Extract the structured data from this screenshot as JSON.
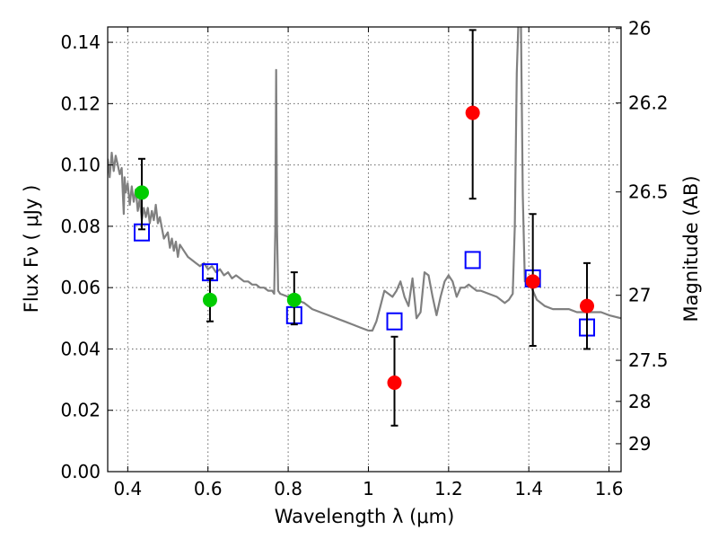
{
  "chart_data": {
    "type": "scatter",
    "xlabel": "Wavelength  λ (μm)",
    "ylabel": "Flux  Fν  ( μJy )",
    "y2label": "Magnitude (AB)",
    "xlim": [
      0.35,
      1.63
    ],
    "ylim": [
      0.0,
      0.145
    ],
    "grid": true,
    "x_ticks": [
      0.4,
      0.6,
      0.8,
      1.0,
      1.2,
      1.4,
      1.6
    ],
    "x_tick_labels": [
      "0.4",
      "0.6",
      "0.8",
      "1",
      "1.2",
      "1.4",
      "1.6"
    ],
    "y_ticks": [
      0.0,
      0.02,
      0.04,
      0.06,
      0.08,
      0.1,
      0.12,
      0.14
    ],
    "y_tick_labels": [
      "0.00",
      "0.02",
      "0.04",
      "0.06",
      "0.08",
      "0.10",
      "0.12",
      "0.14"
    ],
    "y2_ticks": [
      {
        "label": "26",
        "flux": 0.1445
      },
      {
        "label": "26.2",
        "flux": 0.1202
      },
      {
        "label": "26.5",
        "flux": 0.0912
      },
      {
        "label": "27",
        "flux": 0.0575
      },
      {
        "label": "27.5",
        "flux": 0.0363
      },
      {
        "label": "28",
        "flux": 0.0229
      },
      {
        "label": "29",
        "flux": 0.0091
      }
    ],
    "series": [
      {
        "kind": "line",
        "color": "#808080",
        "points": [
          [
            0.35,
            0.102
          ],
          [
            0.355,
            0.096
          ],
          [
            0.36,
            0.104
          ],
          [
            0.365,
            0.098
          ],
          [
            0.37,
            0.103
          ],
          [
            0.375,
            0.1
          ],
          [
            0.38,
            0.097
          ],
          [
            0.385,
            0.099
          ],
          [
            0.39,
            0.084
          ],
          [
            0.392,
            0.096
          ],
          [
            0.395,
            0.091
          ],
          [
            0.4,
            0.094
          ],
          [
            0.405,
            0.087
          ],
          [
            0.41,
            0.093
          ],
          [
            0.415,
            0.088
          ],
          [
            0.42,
            0.092
          ],
          [
            0.425,
            0.085
          ],
          [
            0.43,
            0.089
          ],
          [
            0.435,
            0.082
          ],
          [
            0.44,
            0.086
          ],
          [
            0.445,
            0.083
          ],
          [
            0.45,
            0.086
          ],
          [
            0.455,
            0.081
          ],
          [
            0.46,
            0.085
          ],
          [
            0.465,
            0.082
          ],
          [
            0.47,
            0.087
          ],
          [
            0.475,
            0.081
          ],
          [
            0.48,
            0.083
          ],
          [
            0.49,
            0.076
          ],
          [
            0.5,
            0.078
          ],
          [
            0.505,
            0.073
          ],
          [
            0.51,
            0.076
          ],
          [
            0.515,
            0.072
          ],
          [
            0.52,
            0.075
          ],
          [
            0.525,
            0.07
          ],
          [
            0.53,
            0.074
          ],
          [
            0.54,
            0.072
          ],
          [
            0.55,
            0.07
          ],
          [
            0.56,
            0.069
          ],
          [
            0.57,
            0.068
          ],
          [
            0.58,
            0.067
          ],
          [
            0.59,
            0.068
          ],
          [
            0.6,
            0.066
          ],
          [
            0.61,
            0.067
          ],
          [
            0.62,
            0.065
          ],
          [
            0.63,
            0.066
          ],
          [
            0.64,
            0.064
          ],
          [
            0.65,
            0.065
          ],
          [
            0.66,
            0.063
          ],
          [
            0.67,
            0.064
          ],
          [
            0.68,
            0.063
          ],
          [
            0.69,
            0.062
          ],
          [
            0.7,
            0.062
          ],
          [
            0.71,
            0.061
          ],
          [
            0.72,
            0.061
          ],
          [
            0.73,
            0.06
          ],
          [
            0.74,
            0.06
          ],
          [
            0.75,
            0.059
          ],
          [
            0.76,
            0.059
          ],
          [
            0.765,
            0.058
          ],
          [
            0.768,
            0.08
          ],
          [
            0.77,
            0.131
          ],
          [
            0.772,
            0.08
          ],
          [
            0.775,
            0.059
          ],
          [
            0.78,
            0.058
          ],
          [
            0.8,
            0.057
          ],
          [
            0.82,
            0.056
          ],
          [
            0.84,
            0.055
          ],
          [
            0.86,
            0.053
          ],
          [
            0.88,
            0.052
          ],
          [
            0.9,
            0.051
          ],
          [
            0.92,
            0.05
          ],
          [
            0.94,
            0.049
          ],
          [
            0.96,
            0.048
          ],
          [
            0.98,
            0.047
          ],
          [
            1.0,
            0.046
          ],
          [
            1.01,
            0.046
          ],
          [
            1.02,
            0.049
          ],
          [
            1.03,
            0.054
          ],
          [
            1.04,
            0.059
          ],
          [
            1.05,
            0.058
          ],
          [
            1.06,
            0.057
          ],
          [
            1.07,
            0.059
          ],
          [
            1.08,
            0.062
          ],
          [
            1.09,
            0.057
          ],
          [
            1.1,
            0.054
          ],
          [
            1.11,
            0.063
          ],
          [
            1.12,
            0.05
          ],
          [
            1.13,
            0.052
          ],
          [
            1.14,
            0.065
          ],
          [
            1.15,
            0.064
          ],
          [
            1.16,
            0.057
          ],
          [
            1.17,
            0.051
          ],
          [
            1.18,
            0.057
          ],
          [
            1.19,
            0.062
          ],
          [
            1.2,
            0.064
          ],
          [
            1.21,
            0.062
          ],
          [
            1.22,
            0.057
          ],
          [
            1.23,
            0.06
          ],
          [
            1.24,
            0.06
          ],
          [
            1.25,
            0.061
          ],
          [
            1.26,
            0.06
          ],
          [
            1.27,
            0.059
          ],
          [
            1.28,
            0.059
          ],
          [
            1.3,
            0.058
          ],
          [
            1.32,
            0.057
          ],
          [
            1.34,
            0.055
          ],
          [
            1.35,
            0.056
          ],
          [
            1.36,
            0.058
          ],
          [
            1.365,
            0.08
          ],
          [
            1.37,
            0.13
          ],
          [
            1.375,
            0.15
          ],
          [
            1.38,
            0.15
          ],
          [
            1.385,
            0.09
          ],
          [
            1.39,
            0.062
          ],
          [
            1.4,
            0.062
          ],
          [
            1.42,
            0.056
          ],
          [
            1.44,
            0.054
          ],
          [
            1.46,
            0.053
          ],
          [
            1.48,
            0.053
          ],
          [
            1.5,
            0.053
          ],
          [
            1.52,
            0.052
          ],
          [
            1.54,
            0.052
          ],
          [
            1.56,
            0.052
          ],
          [
            1.58,
            0.052
          ],
          [
            1.6,
            0.051
          ],
          [
            1.63,
            0.05
          ]
        ]
      },
      {
        "kind": "open-square",
        "color": "#0000ff",
        "points": [
          [
            0.435,
            0.078
          ],
          [
            0.605,
            0.065
          ],
          [
            0.815,
            0.051
          ],
          [
            1.065,
            0.049
          ],
          [
            1.26,
            0.069
          ],
          [
            1.41,
            0.063
          ],
          [
            1.545,
            0.047
          ]
        ]
      },
      {
        "kind": "filled-circle-errorbar",
        "color": "#00cc00",
        "points": [
          {
            "x": 0.435,
            "y": 0.091,
            "err_lo": 0.079,
            "err_hi": 0.102
          },
          {
            "x": 0.605,
            "y": 0.056,
            "err_lo": 0.049,
            "err_hi": 0.063
          },
          {
            "x": 0.815,
            "y": 0.056,
            "err_lo": 0.048,
            "err_hi": 0.065
          }
        ]
      },
      {
        "kind": "filled-circle-errorbar",
        "color": "#ff0000",
        "points": [
          {
            "x": 1.065,
            "y": 0.029,
            "err_lo": 0.015,
            "err_hi": 0.044
          },
          {
            "x": 1.26,
            "y": 0.117,
            "err_lo": 0.089,
            "err_hi": 0.144
          },
          {
            "x": 1.41,
            "y": 0.062,
            "err_lo": 0.041,
            "err_hi": 0.084
          },
          {
            "x": 1.545,
            "y": 0.054,
            "err_lo": 0.04,
            "err_hi": 0.068
          }
        ]
      }
    ]
  }
}
